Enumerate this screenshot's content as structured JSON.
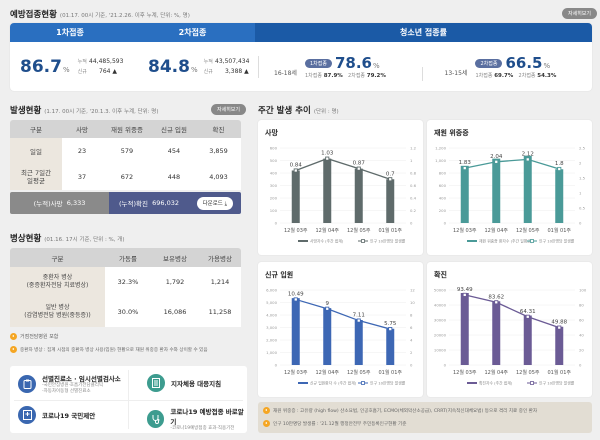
{
  "vaccination": {
    "title": "예방접종현황",
    "subtitle": "(01.17. 00시 기준, '21.2.26. 이후 누계, 단위: %, 명)",
    "detail_button": "자세히보기",
    "tabs": [
      "1차접종",
      "2차접종",
      "청소년 접종률"
    ],
    "first": {
      "rate": "86.7",
      "unit": "%",
      "cum_label": "누적",
      "cum": "44,485,593",
      "new_label": "신규",
      "new": "764 ▲"
    },
    "second": {
      "rate": "84.8",
      "unit": "%",
      "cum_label": "누적",
      "cum": "43,507,434",
      "new_label": "신규",
      "new": "3,388 ▲"
    },
    "youth": [
      {
        "age": "16-18세",
        "badge": "1차접종",
        "rate": "78.6",
        "unit": "%",
        "d1_label": "1차접종",
        "d1": "87.9%",
        "d2_label": "2차접종",
        "d2": "79.2%"
      },
      {
        "age": "13-15세",
        "badge": "2차접종",
        "rate": "66.5",
        "unit": "%",
        "d1_label": "1차접종",
        "d1": "69.7%",
        "d2_label": "2차접종",
        "d2": "54.3%"
      }
    ]
  },
  "occurrence": {
    "title": "발생현황",
    "subtitle": "(1.17. 00시 기준, '20.1.3. 이후 누계, 단위: 명)",
    "detail_button": "자세히보기",
    "headers": [
      "구분",
      "사망",
      "재원 위중증",
      "신규 입원",
      "확진"
    ],
    "rows": [
      {
        "label": "일일",
        "values": [
          "23",
          "579",
          "454",
          "3,859"
        ]
      },
      {
        "label": "최근 7일간\n일평균",
        "values": [
          "37",
          "672",
          "448",
          "4,093"
        ]
      }
    ],
    "cum_death_label": "(누적)사망",
    "cum_death": "6,333",
    "cum_confirmed_label": "(누적)확진",
    "cum_confirmed": "696,032",
    "download_button": "다운로드 ⤓"
  },
  "beds": {
    "title": "병상현황",
    "subtitle": "(01.16. 17시 기준, 단위 : %, 개)",
    "headers": [
      "구분",
      "가동률",
      "보유병상",
      "가용병상"
    ],
    "rows": [
      {
        "label": "중환자 병상\n(중증환자전담 치료병상)",
        "values": [
          "32.3%",
          "1,792",
          "1,214"
        ]
      },
      {
        "label": "일반 병상\n(감염병전담 병원(중등증))",
        "values": [
          "30.0%",
          "16,086",
          "11,258"
        ]
      }
    ],
    "notes": [
      "거점전담병원 포함",
      "중환자 병상 : 집계 시점의 중환자 병상 사용(입원) 현황으로 재원 위중증 환자 수와 상이할 수 있음"
    ]
  },
  "quick_links": [
    {
      "title": "선별진료소 · 임시선별검사소",
      "sub": "-국민안심병원·호흡기전담클리닉\n-자동차이동형 선별진료소"
    },
    {
      "title": "지자체용 대응지침",
      "sub": ""
    },
    {
      "title": "코로나19 국민제안",
      "sub": ""
    },
    {
      "title": "코로나19 예방접종 바로알기",
      "sub": "-코로나19예방접종 효과·직용기전"
    }
  ],
  "weekly": {
    "title": "주간 발생 추이",
    "subtitle": "(단위 : 명)"
  },
  "chart_data": [
    {
      "type": "bar",
      "title": "사망",
      "categories": [
        "12월 03주",
        "12월 04주",
        "12월 05주",
        "01월 01주"
      ],
      "series": [
        {
          "name": "사망자수 (주간 합계)",
          "values": [
            420,
            515,
            435,
            350
          ]
        },
        {
          "name": "인구 10만명당 발생률",
          "values": [
            0.84,
            1.03,
            0.87,
            0.7
          ],
          "type": "line",
          "axis": "right"
        }
      ],
      "yticks": [
        "0",
        "100",
        "200",
        "300",
        "400",
        "500",
        "600"
      ],
      "y2ticks": [
        "0",
        "0.2",
        "0.4",
        "0.6",
        "0.8",
        "1",
        "1.2"
      ],
      "ylim": [
        0,
        600
      ],
      "y2lim": [
        0,
        1.2
      ],
      "color": "#5f6b6b"
    },
    {
      "type": "bar",
      "title": "재원 위중증",
      "categories": [
        "12월 03주",
        "12월 04주",
        "12월 05주",
        "01월 01주"
      ],
      "series": [
        {
          "name": "재원 위중증 환자수 (주간 일평균)",
          "values": [
            915,
            1030,
            1075,
            860
          ]
        },
        {
          "name": "인구 10만명당 발생률",
          "values": [
            1.83,
            2.04,
            2.12,
            1.8
          ],
          "type": "line",
          "axis": "right"
        }
      ],
      "yticks": [
        "0",
        "200",
        "400",
        "600",
        "800",
        "1,000",
        "1,200"
      ],
      "y2ticks": [
        "0",
        "0.5",
        "1",
        "1.5",
        "2",
        "2.5"
      ],
      "ylim": [
        0,
        1200
      ],
      "y2lim": [
        0,
        2.5
      ],
      "color": "#4a9a98"
    },
    {
      "type": "bar",
      "title": "신규 입원",
      "categories": [
        "12월 03주",
        "12월 04주",
        "12월 05주",
        "01월 01주"
      ],
      "series": [
        {
          "name": "신규 입원환자 수 (주간 합계)",
          "values": [
            5350,
            4550,
            3600,
            2900
          ]
        },
        {
          "name": "인구 10만명당 발생률",
          "values": [
            10.49,
            9,
            7.11,
            5.75
          ],
          "type": "line",
          "axis": "right"
        }
      ],
      "yticks": [
        "0",
        "1,000",
        "2,000",
        "3,000",
        "4,000",
        "5,000",
        "6,000"
      ],
      "y2ticks": [
        "0",
        "2",
        "4",
        "6",
        "8",
        "10",
        "12"
      ],
      "ylim": [
        0,
        6000
      ],
      "y2lim": [
        0,
        12
      ],
      "color": "#3d67b4"
    },
    {
      "type": "bar",
      "title": "확진",
      "categories": [
        "12월 03주",
        "12월 04주",
        "12월 05주",
        "01월 01주"
      ],
      "series": [
        {
          "name": "확진자수 (주간 합계)",
          "values": [
            48000,
            42500,
            33000,
            25500
          ]
        },
        {
          "name": "인구 10만명당 발생률",
          "values": [
            93.49,
            83.62,
            64.31,
            49.88
          ],
          "type": "line",
          "axis": "right"
        }
      ],
      "yticks": [
        "0",
        "10000",
        "20000",
        "30000",
        "40000",
        "50000"
      ],
      "y2ticks": [
        "0",
        "20",
        "40",
        "60",
        "80",
        "100"
      ],
      "ylim": [
        0,
        50000
      ],
      "y2lim": [
        0,
        100
      ],
      "color": "#6b5b95"
    }
  ],
  "footnotes": [
    "재원 위중증 : 고유량 (high flow) 산소요법, 인공호흡기, ECMO(체외막산소공급), CRRT(지속적신대체요법) 등으로 격리 치료 중인 환자",
    "인구 10만명당 발생률 : '21.12월 행정안전부 주민등록인구현황 기준"
  ]
}
